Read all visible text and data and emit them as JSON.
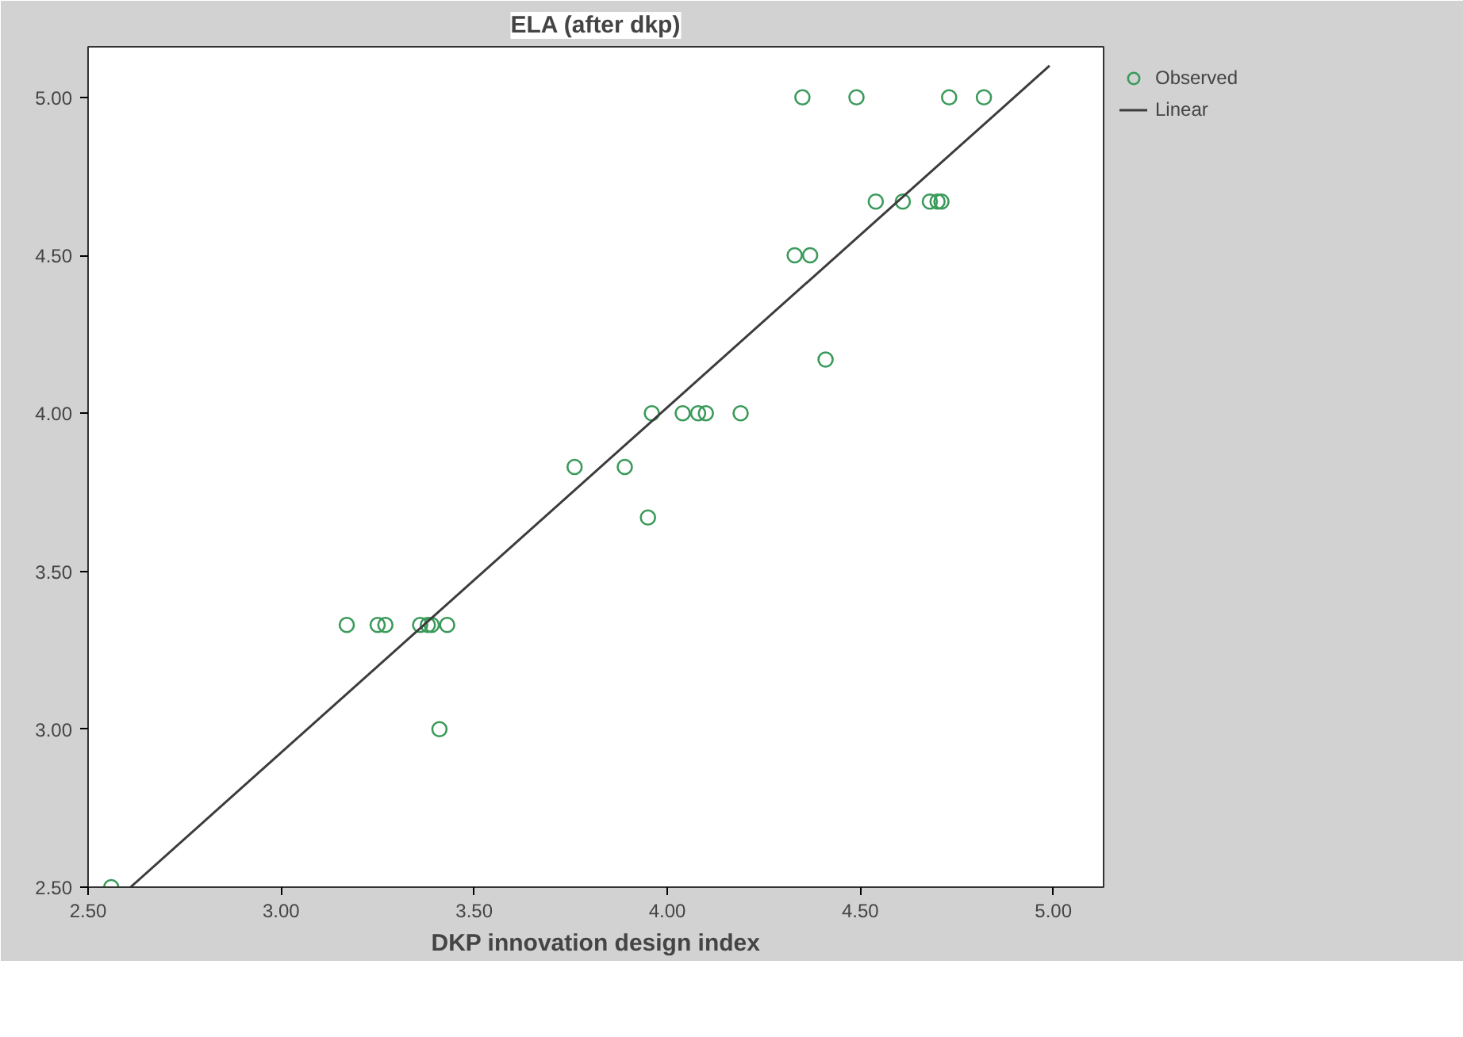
{
  "chart_data": {
    "type": "scatter",
    "title": "ELA (after dkp)",
    "xlabel": "DKP innovation design index",
    "xlim": [
      2.5,
      5.13
    ],
    "ylim": [
      2.5,
      5.16
    ],
    "xticks": [
      {
        "value": 2.5,
        "label": "2.50"
      },
      {
        "value": 3.0,
        "label": "3.00"
      },
      {
        "value": 3.5,
        "label": "3.50"
      },
      {
        "value": 4.0,
        "label": "4.00"
      },
      {
        "value": 4.5,
        "label": "4.50"
      },
      {
        "value": 5.0,
        "label": "5.00"
      }
    ],
    "yticks": [
      {
        "value": 2.5,
        "label": "2.50"
      },
      {
        "value": 3.0,
        "label": "3.00"
      },
      {
        "value": 3.5,
        "label": "3.50"
      },
      {
        "value": 4.0,
        "label": "4.00"
      },
      {
        "value": 4.5,
        "label": "4.50"
      },
      {
        "value": 5.0,
        "label": "5.00"
      }
    ],
    "grid": false,
    "legend": "right",
    "series": [
      {
        "name": "Observed",
        "marker": "circle",
        "color": "#3a9a5a",
        "x": [
          4.35,
          4.49,
          4.73,
          4.82,
          4.54,
          4.61,
          4.68,
          4.7,
          4.71,
          4.33,
          4.37,
          4.41,
          3.96,
          4.04,
          4.08,
          4.1,
          4.19,
          3.76,
          3.89,
          3.95,
          3.17,
          3.25,
          3.27,
          3.36,
          3.38,
          3.39,
          3.43,
          3.41,
          2.56
        ],
        "values": [
          5.0,
          5.0,
          5.0,
          5.0,
          4.67,
          4.67,
          4.67,
          4.67,
          4.67,
          4.5,
          4.5,
          4.17,
          4.0,
          4.0,
          4.0,
          4.0,
          4.0,
          3.83,
          3.83,
          3.67,
          3.33,
          3.33,
          3.33,
          3.33,
          3.33,
          3.33,
          3.33,
          3.0,
          2.5
        ]
      },
      {
        "name": "Linear",
        "type": "line",
        "color": "#3c3c3c",
        "line_style": "solid",
        "x": [
          2.61,
          4.99
        ],
        "values": [
          2.5,
          5.1
        ]
      }
    ]
  }
}
